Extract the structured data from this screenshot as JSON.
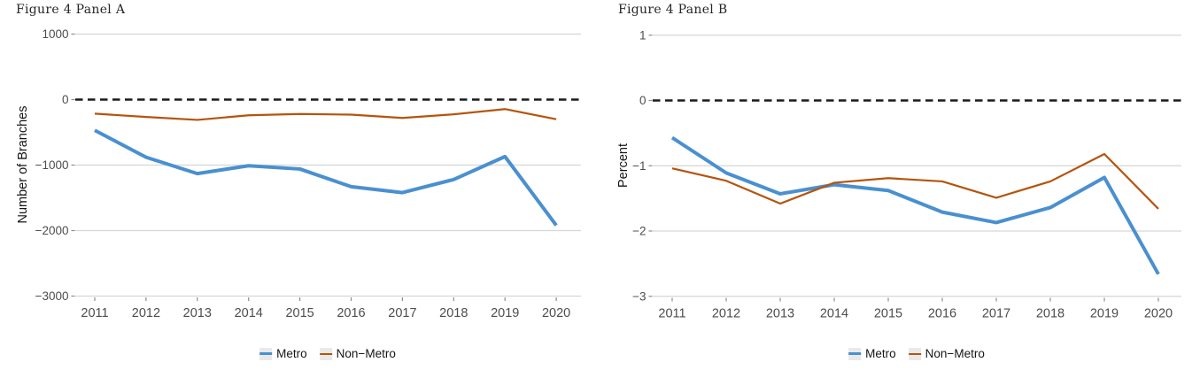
{
  "colors": {
    "metro": "#4a90d0",
    "non_metro": "#b5540d",
    "gridline": "#d6d6d6",
    "zero_line": "#1a1a1a",
    "tick_mark": "#8c8c8c",
    "tick_text": "#4d4d4d",
    "axis_title_text": "#141414",
    "panel_title_text": "#262626",
    "legend_key_bg": "#e9e9e9",
    "background": "#ffffff"
  },
  "chart_data": [
    {
      "type": "line",
      "panel": "A",
      "title": "Figure 4 Panel A",
      "xlabel": "",
      "ylabel": "Number of Branches",
      "x": [
        "2011",
        "2012",
        "2013",
        "2014",
        "2015",
        "2016",
        "2017",
        "2018",
        "2019",
        "2020"
      ],
      "series": [
        {
          "name": "Metro",
          "color": "#4a90d0",
          "width": 4,
          "values": [
            -470,
            -880,
            -1130,
            -1010,
            -1060,
            -1330,
            -1420,
            -1220,
            -870,
            -1920
          ]
        },
        {
          "name": "Non−Metro",
          "color": "#b5540d",
          "width": 2.2,
          "values": [
            -215,
            -265,
            -310,
            -240,
            -220,
            -230,
            -280,
            -225,
            -145,
            -300
          ]
        }
      ],
      "ylim": [
        -3000,
        1000
      ],
      "yticks": [
        {
          "value": 1000,
          "label": "1000"
        },
        {
          "value": 0,
          "label": "0"
        },
        {
          "value": -1000,
          "label": "−1000"
        },
        {
          "value": -2000,
          "label": "−2000"
        },
        {
          "value": -3000,
          "label": "−3000"
        }
      ],
      "zero_reference_line": "dashed black at y=0",
      "grid": true,
      "legend_position": "bottom"
    },
    {
      "type": "line",
      "panel": "B",
      "title": "Figure 4 Panel B",
      "xlabel": "",
      "ylabel": "Percent",
      "x": [
        "2011",
        "2012",
        "2013",
        "2014",
        "2015",
        "2016",
        "2017",
        "2018",
        "2019",
        "2020"
      ],
      "series": [
        {
          "name": "Metro",
          "color": "#4a90d0",
          "width": 4,
          "values": [
            -0.57,
            -1.11,
            -1.43,
            -1.29,
            -1.38,
            -1.71,
            -1.87,
            -1.64,
            -1.18,
            -2.66
          ]
        },
        {
          "name": "Non−Metro",
          "color": "#b5540d",
          "width": 2.2,
          "values": [
            -1.04,
            -1.23,
            -1.58,
            -1.26,
            -1.19,
            -1.24,
            -1.49,
            -1.24,
            -0.82,
            -1.66
          ]
        }
      ],
      "ylim": [
        -3,
        1
      ],
      "yticks": [
        {
          "value": 1,
          "label": "1"
        },
        {
          "value": 0,
          "label": "0"
        },
        {
          "value": -1,
          "label": "−1"
        },
        {
          "value": -2,
          "label": "−2"
        },
        {
          "value": -3,
          "label": "−3"
        }
      ],
      "zero_reference_line": "dashed black at y=0",
      "grid": true,
      "legend_position": "bottom"
    }
  ]
}
